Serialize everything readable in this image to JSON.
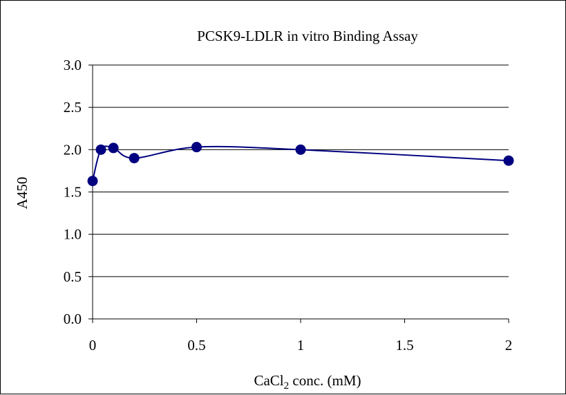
{
  "chart_data": {
    "type": "line",
    "title": "PCSK9-LDLR in vitro Binding Assay",
    "xlabel": {
      "base": "CaCl",
      "subscript": "2",
      "suffix": " conc. (mM)"
    },
    "ylabel": "A450",
    "xlim": [
      0,
      2
    ],
    "ylim": [
      0,
      3.0
    ],
    "x_ticks": [
      0,
      0.5,
      1,
      1.5,
      2
    ],
    "x_tick_labels": [
      "0",
      "0.5",
      "1",
      "1.5",
      "2"
    ],
    "y_ticks": [
      0,
      0.5,
      1.0,
      1.5,
      2.0,
      2.5,
      3.0
    ],
    "y_tick_labels": [
      "0.0",
      "0.5",
      "1.0",
      "1.5",
      "2.0",
      "2.5",
      "3.0"
    ],
    "grid": "horizontal",
    "legend": "none",
    "series": [
      {
        "x": [
          0,
          0.04,
          0.1,
          0.2,
          0.5,
          1,
          2
        ],
        "y": [
          1.63,
          2.0,
          2.02,
          1.9,
          2.03,
          2.0,
          1.87
        ],
        "color": "#000080",
        "smooth": true,
        "marker": "circle"
      }
    ]
  }
}
